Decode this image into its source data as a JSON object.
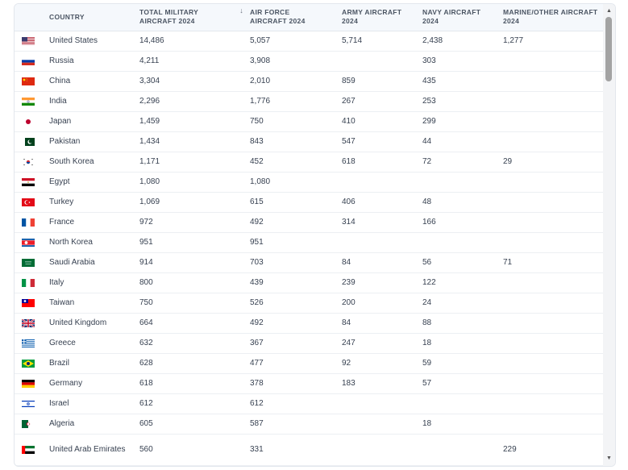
{
  "table": {
    "columns": [
      {
        "key": "flag",
        "label": ""
      },
      {
        "key": "country",
        "label": "COUNTRY"
      },
      {
        "key": "total",
        "label": "TOTAL MILITARY AIRCRAFT 2024",
        "sorted": true
      },
      {
        "key": "air",
        "label": "AIR FORCE AIRCRAFT 2024"
      },
      {
        "key": "army",
        "label": "ARMY AIRCRAFT 2024"
      },
      {
        "key": "navy",
        "label": "NAVY AIRCRAFT 2024"
      },
      {
        "key": "marine",
        "label": "MARINE/OTHER AIRCRAFT 2024"
      }
    ],
    "rows": [
      {
        "flag": "us-flag",
        "country": "United States",
        "total": "14,486",
        "air": "5,057",
        "army": "5,714",
        "navy": "2,438",
        "marine": "1,277"
      },
      {
        "flag": "ru-flag",
        "country": "Russia",
        "total": "4,211",
        "air": "3,908",
        "army": "",
        "navy": "303",
        "marine": ""
      },
      {
        "flag": "cn-flag",
        "country": "China",
        "total": "3,304",
        "air": "2,010",
        "army": "859",
        "navy": "435",
        "marine": ""
      },
      {
        "flag": "in-flag",
        "country": "India",
        "total": "2,296",
        "air": "1,776",
        "army": "267",
        "navy": "253",
        "marine": ""
      },
      {
        "flag": "jp-flag",
        "country": "Japan",
        "total": "1,459",
        "air": "750",
        "army": "410",
        "navy": "299",
        "marine": ""
      },
      {
        "flag": "pk-flag",
        "country": "Pakistan",
        "total": "1,434",
        "air": "843",
        "army": "547",
        "navy": "44",
        "marine": ""
      },
      {
        "flag": "kr-flag",
        "country": "South Korea",
        "total": "1,171",
        "air": "452",
        "army": "618",
        "navy": "72",
        "marine": "29"
      },
      {
        "flag": "eg-flag",
        "country": "Egypt",
        "total": "1,080",
        "air": "1,080",
        "army": "",
        "navy": "",
        "marine": ""
      },
      {
        "flag": "tr-flag",
        "country": "Turkey",
        "total": "1,069",
        "air": "615",
        "army": "406",
        "navy": "48",
        "marine": ""
      },
      {
        "flag": "fr-flag",
        "country": "France",
        "total": "972",
        "air": "492",
        "army": "314",
        "navy": "166",
        "marine": ""
      },
      {
        "flag": "kp-flag",
        "country": "North Korea",
        "total": "951",
        "air": "951",
        "army": "",
        "navy": "",
        "marine": ""
      },
      {
        "flag": "sa-flag",
        "country": "Saudi Arabia",
        "total": "914",
        "air": "703",
        "army": "84",
        "navy": "56",
        "marine": "71"
      },
      {
        "flag": "it-flag",
        "country": "Italy",
        "total": "800",
        "air": "439",
        "army": "239",
        "navy": "122",
        "marine": ""
      },
      {
        "flag": "tw-flag",
        "country": "Taiwan",
        "total": "750",
        "air": "526",
        "army": "200",
        "navy": "24",
        "marine": ""
      },
      {
        "flag": "gb-flag",
        "country": "United Kingdom",
        "total": "664",
        "air": "492",
        "army": "84",
        "navy": "88",
        "marine": ""
      },
      {
        "flag": "gr-flag",
        "country": "Greece",
        "total": "632",
        "air": "367",
        "army": "247",
        "navy": "18",
        "marine": ""
      },
      {
        "flag": "br-flag",
        "country": "Brazil",
        "total": "628",
        "air": "477",
        "army": "92",
        "navy": "59",
        "marine": ""
      },
      {
        "flag": "de-flag",
        "country": "Germany",
        "total": "618",
        "air": "378",
        "army": "183",
        "navy": "57",
        "marine": ""
      },
      {
        "flag": "il-flag",
        "country": "Israel",
        "total": "612",
        "air": "612",
        "army": "",
        "navy": "",
        "marine": ""
      },
      {
        "flag": "dz-flag",
        "country": "Algeria",
        "total": "605",
        "air": "587",
        "army": "",
        "navy": "18",
        "marine": ""
      },
      {
        "flag": "ae-flag",
        "country": "United Arab Emirates",
        "total": "560",
        "air": "331",
        "army": "",
        "navy": "",
        "marine": "229"
      }
    ]
  },
  "scrollbar": {
    "up_arrow": "▲",
    "down_arrow": "▼"
  }
}
